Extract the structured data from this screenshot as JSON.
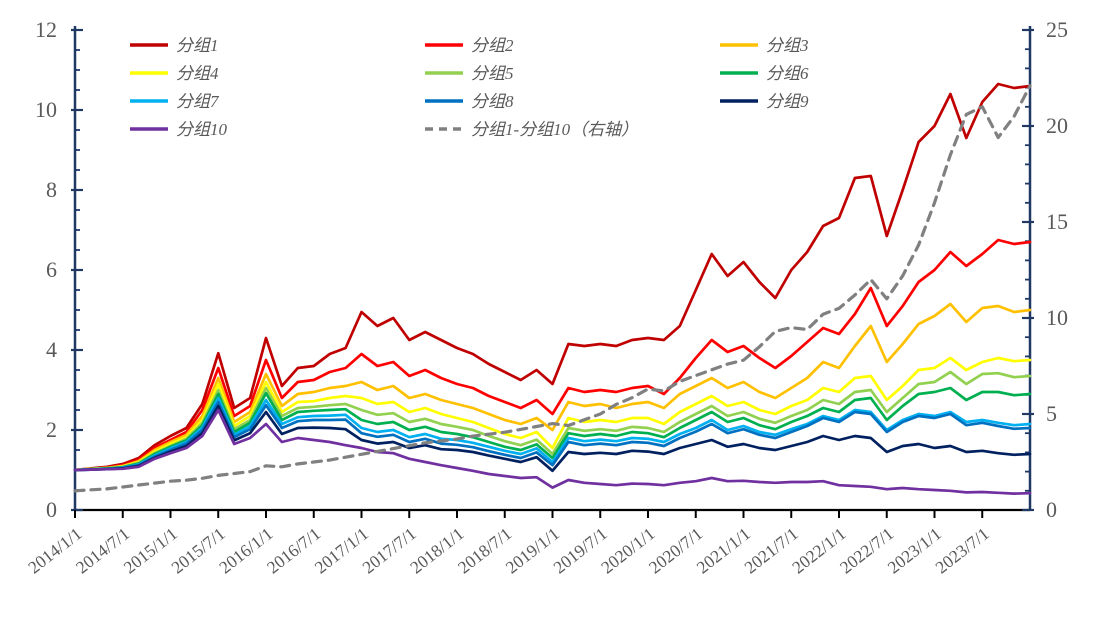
{
  "chart_data": {
    "type": "line",
    "title": "",
    "x_unit": "month",
    "x_start_label": "2014/1/1",
    "x_months_per_point": 2,
    "x_total_months": 120,
    "x_tick_every_months": 6,
    "x_tick_labels": [
      "2014/1/1",
      "2014/7/1",
      "2015/1/1",
      "2015/7/1",
      "2016/1/1",
      "2016/7/1",
      "2017/1/1",
      "2017/7/1",
      "2018/1/1",
      "2018/7/1",
      "2019/1/1",
      "2019/7/1",
      "2020/1/1",
      "2020/7/1",
      "2021/1/1",
      "2021/7/1",
      "2022/1/1",
      "2022/7/1",
      "2023/1/1",
      "2023/7/1"
    ],
    "left_axis": {
      "min": 0,
      "max": 12,
      "major_tick_step": 2,
      "minor_tick_step": 0.5,
      "tick_labels": [
        "0",
        "2",
        "4",
        "6",
        "8",
        "10",
        "12"
      ]
    },
    "right_axis": {
      "min": 0,
      "max": 25,
      "major_tick_step": 5,
      "minor_tick_step": 1,
      "tick_labels": [
        "0",
        "5",
        "10",
        "15",
        "20",
        "25"
      ]
    },
    "grid": false,
    "legend_position": "top",
    "legend_rows": [
      [
        "分组1",
        "分组2",
        "分组3"
      ],
      [
        "分组4",
        "分组5",
        "分组6"
      ],
      [
        "分组7",
        "分组8",
        "分组9"
      ],
      [
        "分组10",
        "分组1-分组10（右轴）"
      ]
    ],
    "colors": {
      "y_axis": "#1F3864",
      "x_axis": "#000000",
      "tick_label": "#595959",
      "legend_label": "#595959"
    },
    "series": [
      {
        "name": "分组1",
        "axis": "left",
        "style": "solid",
        "color": "#C00000",
        "values": [
          1.0,
          1.04,
          1.08,
          1.15,
          1.3,
          1.62,
          1.85,
          2.05,
          2.65,
          3.92,
          2.55,
          2.8,
          4.3,
          3.1,
          3.55,
          3.6,
          3.9,
          4.05,
          4.95,
          4.6,
          4.8,
          4.25,
          4.45,
          4.25,
          4.05,
          3.9,
          3.65,
          3.45,
          3.25,
          3.5,
          3.15,
          4.15,
          4.1,
          4.15,
          4.1,
          4.25,
          4.3,
          4.25,
          4.6,
          5.5,
          6.4,
          5.85,
          6.2,
          5.7,
          5.3,
          6.0,
          6.45,
          7.1,
          7.3,
          8.3,
          8.35,
          6.85,
          8.0,
          9.2,
          9.6,
          10.4,
          9.3,
          10.2,
          10.65,
          10.55,
          10.6
        ]
      },
      {
        "name": "分组2",
        "axis": "left",
        "style": "solid",
        "color": "#FF0000",
        "values": [
          1.0,
          1.03,
          1.06,
          1.12,
          1.25,
          1.55,
          1.75,
          1.95,
          2.5,
          3.55,
          2.35,
          2.6,
          3.75,
          2.8,
          3.2,
          3.25,
          3.45,
          3.55,
          3.9,
          3.6,
          3.7,
          3.35,
          3.5,
          3.3,
          3.15,
          3.05,
          2.85,
          2.7,
          2.55,
          2.75,
          2.4,
          3.05,
          2.95,
          3.0,
          2.95,
          3.05,
          3.1,
          2.9,
          3.3,
          3.8,
          4.25,
          3.95,
          4.1,
          3.8,
          3.55,
          3.85,
          4.2,
          4.55,
          4.4,
          4.9,
          5.55,
          4.6,
          5.1,
          5.7,
          6.0,
          6.45,
          6.1,
          6.4,
          6.75,
          6.65,
          6.7
        ]
      },
      {
        "name": "分组3",
        "axis": "left",
        "style": "solid",
        "color": "#FFC000",
        "values": [
          1.0,
          1.03,
          1.05,
          1.1,
          1.22,
          1.5,
          1.7,
          1.88,
          2.35,
          3.3,
          2.2,
          2.45,
          3.4,
          2.6,
          2.9,
          2.95,
          3.05,
          3.1,
          3.2,
          3.0,
          3.1,
          2.8,
          2.9,
          2.75,
          2.65,
          2.55,
          2.4,
          2.25,
          2.15,
          2.3,
          2.0,
          2.7,
          2.6,
          2.65,
          2.55,
          2.65,
          2.7,
          2.55,
          2.9,
          3.1,
          3.3,
          3.05,
          3.2,
          2.95,
          2.8,
          3.05,
          3.3,
          3.7,
          3.55,
          4.1,
          4.6,
          3.7,
          4.15,
          4.65,
          4.85,
          5.15,
          4.7,
          5.05,
          5.1,
          4.95,
          5.0
        ]
      },
      {
        "name": "分组4",
        "axis": "left",
        "style": "solid",
        "color": "#FFFF00",
        "values": [
          1.0,
          1.03,
          1.05,
          1.09,
          1.2,
          1.45,
          1.65,
          1.82,
          2.25,
          3.15,
          2.1,
          2.35,
          3.2,
          2.45,
          2.7,
          2.72,
          2.8,
          2.85,
          2.8,
          2.65,
          2.7,
          2.45,
          2.55,
          2.4,
          2.3,
          2.2,
          2.05,
          1.9,
          1.8,
          1.95,
          1.55,
          2.3,
          2.2,
          2.25,
          2.2,
          2.3,
          2.3,
          2.15,
          2.45,
          2.65,
          2.85,
          2.6,
          2.7,
          2.5,
          2.4,
          2.6,
          2.75,
          3.05,
          2.95,
          3.3,
          3.35,
          2.75,
          3.1,
          3.5,
          3.55,
          3.8,
          3.5,
          3.7,
          3.8,
          3.72,
          3.75
        ]
      },
      {
        "name": "分组5",
        "axis": "left",
        "style": "solid",
        "color": "#92D050",
        "values": [
          1.0,
          1.02,
          1.04,
          1.08,
          1.18,
          1.42,
          1.6,
          1.78,
          2.18,
          3.0,
          2.02,
          2.25,
          3.05,
          2.35,
          2.55,
          2.58,
          2.62,
          2.65,
          2.5,
          2.38,
          2.42,
          2.2,
          2.28,
          2.15,
          2.08,
          2.0,
          1.85,
          1.72,
          1.62,
          1.76,
          1.4,
          2.05,
          1.98,
          2.02,
          1.98,
          2.08,
          2.05,
          1.95,
          2.2,
          2.4,
          2.6,
          2.35,
          2.45,
          2.28,
          2.18,
          2.35,
          2.5,
          2.75,
          2.65,
          2.95,
          3.0,
          2.45,
          2.8,
          3.15,
          3.2,
          3.45,
          3.15,
          3.4,
          3.42,
          3.32,
          3.35
        ]
      },
      {
        "name": "分组6",
        "axis": "left",
        "style": "solid",
        "color": "#00B050",
        "values": [
          1.0,
          1.02,
          1.04,
          1.07,
          1.16,
          1.4,
          1.58,
          1.74,
          2.12,
          2.9,
          1.95,
          2.18,
          2.92,
          2.25,
          2.45,
          2.48,
          2.5,
          2.52,
          2.25,
          2.15,
          2.2,
          2.0,
          2.08,
          1.95,
          1.9,
          1.82,
          1.7,
          1.58,
          1.5,
          1.64,
          1.3,
          1.92,
          1.85,
          1.9,
          1.85,
          1.95,
          1.92,
          1.82,
          2.05,
          2.25,
          2.45,
          2.2,
          2.3,
          2.12,
          2.02,
          2.2,
          2.35,
          2.55,
          2.45,
          2.75,
          2.8,
          2.25,
          2.6,
          2.9,
          2.95,
          3.05,
          2.75,
          2.95,
          2.95,
          2.87,
          2.9
        ]
      },
      {
        "name": "分组7",
        "axis": "left",
        "style": "solid",
        "color": "#00B0F0",
        "values": [
          1.0,
          1.02,
          1.03,
          1.06,
          1.14,
          1.36,
          1.54,
          1.7,
          2.06,
          2.8,
          1.88,
          2.1,
          2.75,
          2.15,
          2.32,
          2.35,
          2.36,
          2.38,
          2.05,
          1.95,
          2.0,
          1.82,
          1.9,
          1.78,
          1.75,
          1.68,
          1.58,
          1.48,
          1.4,
          1.54,
          1.2,
          1.8,
          1.72,
          1.76,
          1.72,
          1.8,
          1.78,
          1.7,
          1.9,
          2.05,
          2.25,
          2.0,
          2.1,
          1.95,
          1.88,
          2.02,
          2.15,
          2.35,
          2.25,
          2.5,
          2.45,
          2.0,
          2.25,
          2.4,
          2.35,
          2.45,
          2.2,
          2.25,
          2.18,
          2.12,
          2.15
        ]
      },
      {
        "name": "分组8",
        "axis": "left",
        "style": "solid",
        "color": "#0070C0",
        "values": [
          1.0,
          1.01,
          1.03,
          1.05,
          1.12,
          1.33,
          1.5,
          1.66,
          2.0,
          2.7,
          1.82,
          2.02,
          2.62,
          2.05,
          2.22,
          2.25,
          2.25,
          2.26,
          1.92,
          1.83,
          1.88,
          1.7,
          1.78,
          1.66,
          1.63,
          1.57,
          1.47,
          1.38,
          1.3,
          1.44,
          1.12,
          1.7,
          1.62,
          1.66,
          1.62,
          1.7,
          1.68,
          1.6,
          1.8,
          1.96,
          2.15,
          1.92,
          2.02,
          1.88,
          1.8,
          1.95,
          2.1,
          2.3,
          2.2,
          2.45,
          2.4,
          1.95,
          2.2,
          2.35,
          2.3,
          2.4,
          2.12,
          2.18,
          2.1,
          2.03,
          2.05
        ]
      },
      {
        "name": "分组9",
        "axis": "left",
        "style": "solid",
        "color": "#002060",
        "values": [
          1.0,
          1.01,
          1.02,
          1.04,
          1.1,
          1.3,
          1.46,
          1.6,
          1.92,
          2.6,
          1.74,
          1.92,
          2.45,
          1.9,
          2.05,
          2.06,
          2.05,
          2.02,
          1.75,
          1.66,
          1.7,
          1.55,
          1.62,
          1.52,
          1.5,
          1.45,
          1.36,
          1.28,
          1.2,
          1.32,
          0.98,
          1.45,
          1.4,
          1.43,
          1.4,
          1.48,
          1.46,
          1.4,
          1.55,
          1.65,
          1.75,
          1.58,
          1.65,
          1.55,
          1.5,
          1.6,
          1.7,
          1.85,
          1.75,
          1.85,
          1.8,
          1.45,
          1.6,
          1.65,
          1.55,
          1.6,
          1.45,
          1.48,
          1.42,
          1.38,
          1.4
        ]
      },
      {
        "name": "分组10",
        "axis": "left",
        "style": "solid",
        "color": "#7030A0",
        "values": [
          1.0,
          1.01,
          1.02,
          1.03,
          1.08,
          1.28,
          1.42,
          1.55,
          1.85,
          2.5,
          1.65,
          1.8,
          2.15,
          1.7,
          1.8,
          1.75,
          1.7,
          1.62,
          1.55,
          1.45,
          1.42,
          1.28,
          1.2,
          1.12,
          1.05,
          0.98,
          0.9,
          0.85,
          0.8,
          0.82,
          0.56,
          0.75,
          0.68,
          0.65,
          0.62,
          0.66,
          0.65,
          0.62,
          0.68,
          0.72,
          0.8,
          0.72,
          0.73,
          0.7,
          0.68,
          0.7,
          0.7,
          0.72,
          0.62,
          0.6,
          0.58,
          0.52,
          0.55,
          0.52,
          0.5,
          0.48,
          0.44,
          0.45,
          0.43,
          0.41,
          0.42
        ]
      },
      {
        "name": "分组1-分组10（右轴）",
        "axis": "right",
        "style": "dashed",
        "color": "#808080",
        "values": [
          1.0,
          1.05,
          1.1,
          1.2,
          1.3,
          1.4,
          1.5,
          1.55,
          1.65,
          1.8,
          1.9,
          2.0,
          2.3,
          2.25,
          2.4,
          2.5,
          2.6,
          2.75,
          2.9,
          3.05,
          3.2,
          3.35,
          3.5,
          3.6,
          3.7,
          3.85,
          3.95,
          4.05,
          4.2,
          4.35,
          4.5,
          4.4,
          4.7,
          5.0,
          5.5,
          5.85,
          6.3,
          6.2,
          6.7,
          7.0,
          7.3,
          7.6,
          7.8,
          8.5,
          9.3,
          9.5,
          9.4,
          10.2,
          10.5,
          11.2,
          12.0,
          11.0,
          12.2,
          13.8,
          16.0,
          18.5,
          20.6,
          21.0,
          19.4,
          20.5,
          22.1
        ]
      }
    ]
  }
}
